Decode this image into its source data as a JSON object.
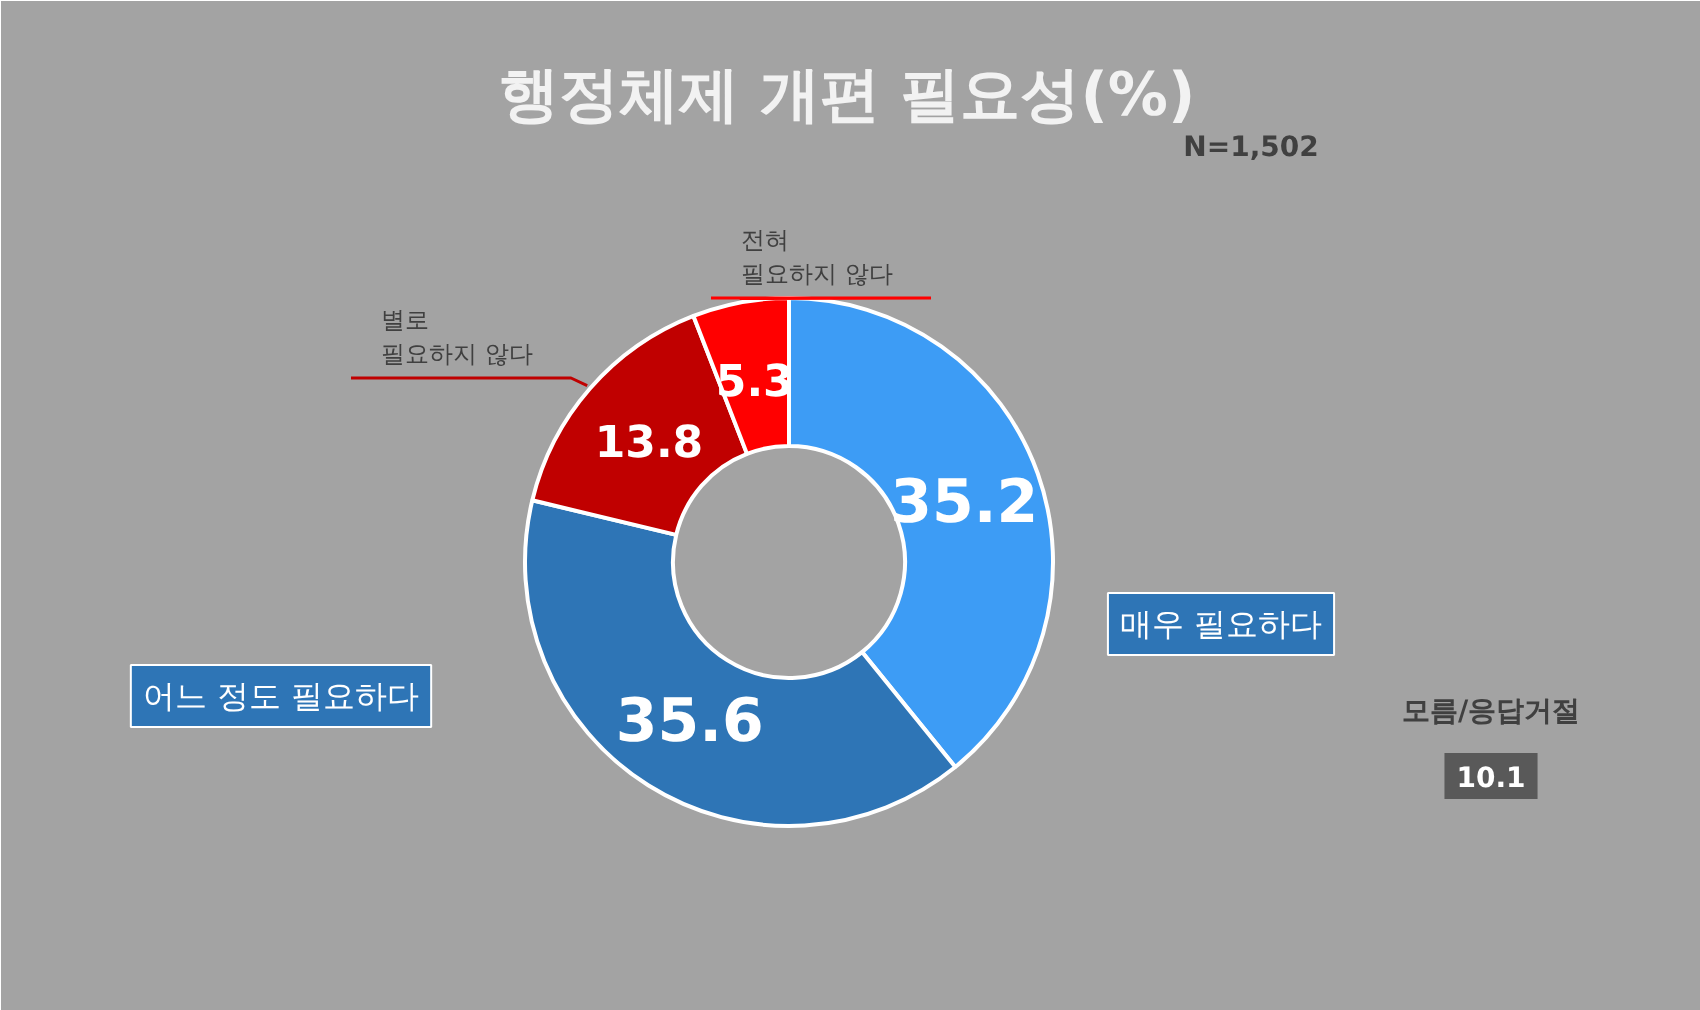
{
  "chart_data": {
    "type": "donut",
    "title": "행정체제 개편 필요성(%)",
    "categories": [
      "매우 필요하다",
      "어느 정도 필요하다",
      "별로\n필요하지 않다",
      "전혀\n필요하지 않다"
    ],
    "values": [
      35.2,
      35.6,
      13.8,
      5.3
    ],
    "colors": [
      "#3d9cf5",
      "#2e75b6",
      "#c00000",
      "#ff0000"
    ],
    "data_labels": true,
    "annotations": [
      "N=1,502",
      "모름/응답거절",
      "10.1"
    ]
  }
}
